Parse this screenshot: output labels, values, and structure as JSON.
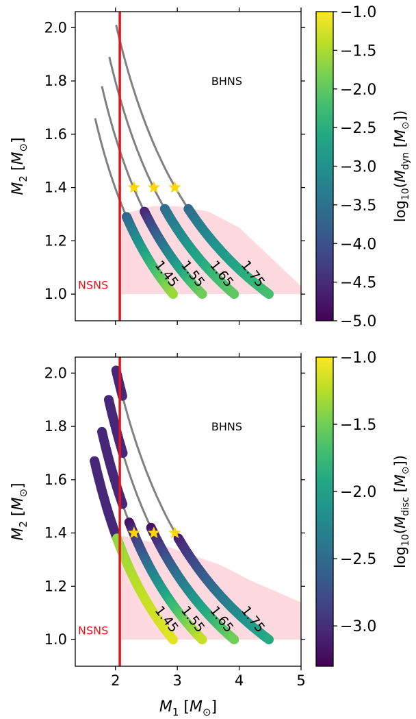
{
  "chart_data": [
    {
      "type": "scatter",
      "panel": "top",
      "xlabel": "M_1 [M_⊙]",
      "ylabel": "M_2 [M_⊙]",
      "colorbar_label": "log10(M_dyn [M_⊙])",
      "xlim": [
        1.35,
        5.0
      ],
      "ylim": [
        0.9,
        2.06
      ],
      "xticks": [
        "2",
        "3",
        "4",
        "5"
      ],
      "xticks_values": [
        2,
        3,
        4,
        5
      ],
      "yticks": [
        "1.0",
        "1.2",
        "1.4",
        "1.6",
        "1.8",
        "2.0"
      ],
      "yticks_values": [
        1.0,
        1.2,
        1.4,
        1.6,
        1.8,
        2.0
      ],
      "colorbar_range": [
        -5.0,
        -1.0
      ],
      "colorbar_ticks": [
        "−1.0",
        "−1.5",
        "−2.0",
        "−2.5",
        "−3.0",
        "−3.5",
        "−4.0",
        "−4.5",
        "−5.0"
      ],
      "colorbar_tick_values": [
        -1.0,
        -1.5,
        -2.0,
        -2.5,
        -3.0,
        -3.5,
        -4.0,
        -4.5,
        -5.0
      ],
      "region_labels": [
        "BHNS",
        "NSNS"
      ],
      "curve_labels": [
        "1.45",
        "1.55",
        "1.65",
        "1.75"
      ],
      "chirp_masses": [
        1.45,
        1.55,
        1.65,
        1.75
      ],
      "threshold_m1": 2.07,
      "stars": [
        {
          "x": 2.3,
          "y": 1.4
        },
        {
          "x": 2.62,
          "y": 1.4
        },
        {
          "x": 2.96,
          "y": 1.4
        }
      ],
      "bands": [
        {
          "chirp": 1.45,
          "m2_top": 1.29,
          "color_top": -3.7,
          "color_bottom": -1.6
        },
        {
          "chirp": 1.55,
          "m2_top": 1.31,
          "color_top": -4.6,
          "color_bottom": -1.9
        },
        {
          "chirp": 1.65,
          "m2_top": 1.32,
          "color_top": -3.6,
          "color_bottom": -2.0
        },
        {
          "chirp": 1.75,
          "m2_top": 1.32,
          "color_top": -3.6,
          "color_bottom": -2.2
        }
      ],
      "pink_region": [
        [
          2.1,
          1.3
        ],
        [
          2.6,
          1.33
        ],
        [
          3.0,
          1.33
        ],
        [
          3.5,
          1.31
        ],
        [
          4.0,
          1.25
        ],
        [
          4.5,
          1.14
        ],
        [
          5.0,
          1.03
        ],
        [
          5.0,
          1.0
        ],
        [
          2.1,
          1.0
        ]
      ]
    },
    {
      "type": "scatter",
      "panel": "bottom",
      "xlabel": "M_1 [M_⊙]",
      "ylabel": "M_2 [M_⊙]",
      "colorbar_label": "log10(M_disc [M_⊙])",
      "xlim": [
        1.35,
        5.0
      ],
      "ylim": [
        0.9,
        2.06
      ],
      "xticks": [
        "2",
        "3",
        "4",
        "5"
      ],
      "xticks_values": [
        2,
        3,
        4,
        5
      ],
      "yticks": [
        "1.0",
        "1.2",
        "1.4",
        "1.6",
        "1.8",
        "2.0"
      ],
      "yticks_values": [
        1.0,
        1.2,
        1.4,
        1.6,
        1.8,
        2.0
      ],
      "colorbar_range": [
        -3.3,
        -1.0
      ],
      "colorbar_ticks": [
        "−1.0",
        "−1.5",
        "−2.0",
        "−2.5",
        "−3.0"
      ],
      "colorbar_tick_values": [
        -1.0,
        -1.5,
        -2.0,
        -2.5,
        -3.0
      ],
      "region_labels": [
        "BHNS",
        "NSNS"
      ],
      "curve_labels": [
        "1.45",
        "1.55",
        "1.65",
        "1.75"
      ],
      "chirp_masses": [
        1.45,
        1.55,
        1.65,
        1.75
      ],
      "threshold_m1": 2.07,
      "stars": [
        {
          "x": 2.3,
          "y": 1.4
        },
        {
          "x": 2.62,
          "y": 1.4
        },
        {
          "x": 2.96,
          "y": 1.4
        }
      ],
      "bands": [
        {
          "chirp": 1.45,
          "m2_top": 1.4,
          "color_top": -1.4,
          "color_bottom": -1.1
        },
        {
          "chirp": 1.55,
          "m2_top": 1.44,
          "color_top": -3.2,
          "color_bottom": -1.2
        },
        {
          "chirp": 1.65,
          "m2_top": 1.42,
          "color_top": -3.2,
          "color_bottom": -1.5
        },
        {
          "chirp": 1.75,
          "m2_top": 1.38,
          "color_top": -3.1,
          "color_bottom": -1.9
        }
      ],
      "pre_threshold_bands": [
        {
          "chirp": 1.45,
          "m2_top": 1.67,
          "color": -3.05
        },
        {
          "chirp": 1.55,
          "m2_top": 1.78,
          "color": -3.05
        },
        {
          "chirp": 1.65,
          "m2_top": 1.9,
          "color": -3.05
        },
        {
          "chirp": 1.75,
          "m2_top": 2.01,
          "color": -3.05
        }
      ],
      "pink_region": [
        [
          2.1,
          1.39
        ],
        [
          2.7,
          1.36
        ],
        [
          3.2,
          1.32
        ],
        [
          3.7,
          1.28
        ],
        [
          4.2,
          1.22
        ],
        [
          4.6,
          1.18
        ],
        [
          5.0,
          1.14
        ],
        [
          5.0,
          1.0
        ],
        [
          2.1,
          1.0
        ]
      ]
    }
  ]
}
